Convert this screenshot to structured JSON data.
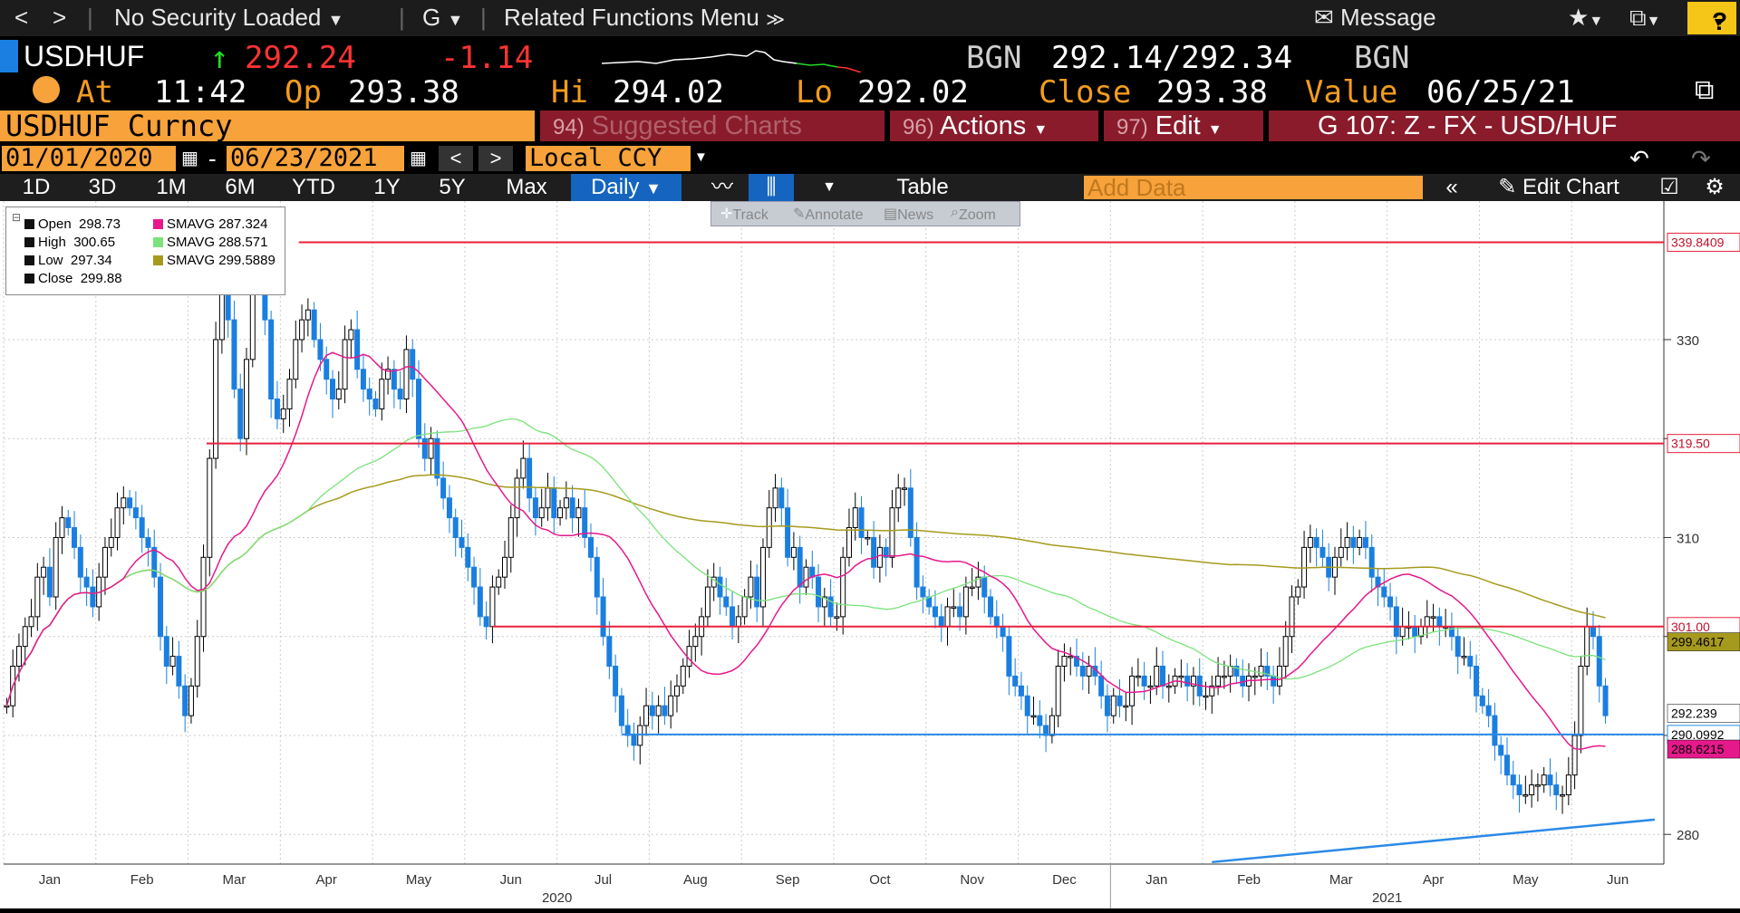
{
  "menubar": {
    "back": "<",
    "forward": ">",
    "security": "No Security Loaded",
    "g_menu": "G",
    "related": "Related Functions Menu",
    "message": "Message",
    "help": "?"
  },
  "quote": {
    "ticker": "USDHUF",
    "last": "292.24",
    "change": "-1.14",
    "bid_src": "BGN",
    "bid_ask": "292.14/292.34",
    "ask_src": "BGN",
    "at_label": "At",
    "time": "11:42",
    "op_label": "Op",
    "open": "293.38",
    "hi_label": "Hi",
    "high": "294.02",
    "lo_label": "Lo",
    "low": "292.02",
    "close_label": "Close",
    "close": "293.38",
    "value_label": "Value",
    "value_date": "06/25/21"
  },
  "toolbar": {
    "security_field": "USDHUF Curncy",
    "suggested_num": "94)",
    "suggested": "Suggested Charts",
    "actions_num": "96)",
    "actions": "Actions",
    "edit_num": "97)",
    "edit": "Edit",
    "template": "G 107: Z - FX - USD/HUF",
    "start_date": "01/01/2020",
    "dash": "-",
    "end_date": "06/23/2021",
    "currency": "Local CCY",
    "periods": [
      "1D",
      "3D",
      "1M",
      "6M",
      "YTD",
      "1Y",
      "5Y",
      "Max"
    ],
    "frequency": "Daily",
    "table": "Table",
    "add_data_placeholder": "Add Data",
    "edit_chart": "Edit Chart",
    "tools": [
      "Track",
      "Annotate",
      "News",
      "Zoom"
    ]
  },
  "colors": {
    "candle": "#1a7fe0",
    "sma_fast": "#e6198c",
    "sma_mid": "#7be37b",
    "sma_slow": "#a69a1e",
    "resistance": "#e8213a",
    "support": "#2a8ae6"
  },
  "chart_data": {
    "type": "candlestick",
    "legend": {
      "open": {
        "label": "Open",
        "value": "298.73"
      },
      "high": {
        "label": "High",
        "value": "300.65"
      },
      "low": {
        "label": "Low",
        "value": "297.34"
      },
      "close": {
        "label": "Close",
        "value": "299.88"
      },
      "sma1": {
        "label": "SMAVG",
        "value": "287.324"
      },
      "sma2": {
        "label": "SMAVG",
        "value": "288.571"
      },
      "sma3": {
        "label": "SMAVG",
        "value": "299.5889"
      }
    },
    "ylim": [
      277,
      344
    ],
    "yticks": [
      280,
      290,
      300,
      310,
      320,
      330
    ],
    "ytick_labels": [
      "280",
      "",
      "",
      "310",
      "",
      "330"
    ],
    "months": [
      "Jan",
      "Feb",
      "Mar",
      "Apr",
      "May",
      "Jun",
      "Jul",
      "Aug",
      "Sep",
      "Oct",
      "Nov",
      "Dec",
      "Jan",
      "Feb",
      "Mar",
      "Apr",
      "May",
      "Jun"
    ],
    "years": [
      {
        "label": "2020",
        "month_index": 5.5
      },
      {
        "label": "2021",
        "month_index": 14.5
      }
    ],
    "close_by_month": [
      [
        293,
        297,
        299,
        301,
        302,
        306,
        307,
        304,
        310,
        312,
        311,
        309,
        306,
        305,
        303
      ],
      [
        306,
        309,
        310,
        313,
        314,
        313,
        312,
        310,
        309,
        306,
        300,
        297,
        298,
        295,
        292
      ],
      [
        295,
        300,
        308,
        318,
        330,
        335,
        332,
        325,
        320,
        328,
        336,
        338,
        332,
        324,
        322
      ],
      [
        323,
        326,
        330,
        332,
        333,
        330,
        328,
        326,
        324,
        325,
        330,
        331,
        327,
        325,
        324
      ],
      [
        323,
        326,
        327,
        325,
        324,
        329,
        326,
        320,
        318,
        320,
        316,
        314,
        312,
        310,
        309
      ],
      [
        307,
        305,
        302,
        301,
        305,
        306,
        308,
        312,
        316,
        318,
        314,
        312,
        313,
        315,
        312
      ],
      [
        313,
        314,
        312,
        313,
        310,
        308,
        304,
        300,
        297,
        294,
        291,
        290,
        289,
        291,
        293
      ],
      [
        292,
        293,
        292,
        294,
        295,
        297,
        299,
        300,
        302,
        305,
        306,
        304,
        303,
        301,
        302
      ],
      [
        304,
        306,
        303,
        309,
        313,
        315,
        313,
        308,
        309,
        305,
        307,
        306,
        303,
        304,
        302
      ],
      [
        302,
        308,
        311,
        313,
        310,
        310,
        307,
        309,
        308,
        313,
        315,
        315,
        310,
        305,
        304
      ],
      [
        303,
        302,
        301,
        303,
        303,
        302,
        305,
        305,
        306,
        304,
        302,
        301,
        300,
        296,
        295
      ],
      [
        294,
        292,
        292,
        291,
        290,
        292,
        297,
        298,
        298,
        297,
        296,
        297,
        296,
        294,
        292
      ],
      [
        294,
        293,
        293,
        296,
        296,
        295,
        295,
        297,
        295,
        295,
        296,
        296,
        295,
        296,
        294
      ],
      [
        294,
        295,
        296,
        296,
        297,
        296,
        295,
        296,
        296,
        297,
        296,
        295,
        297,
        300,
        304
      ],
      [
        305,
        309,
        310,
        309,
        308,
        306,
        308,
        309,
        310,
        309,
        310,
        309,
        306,
        305,
        304
      ],
      [
        303,
        300,
        301,
        301,
        300,
        301,
        302,
        302,
        301,
        301,
        300,
        298,
        298,
        297,
        294
      ],
      [
        293,
        292,
        289,
        288,
        286,
        285,
        284,
        284,
        285,
        285,
        286,
        285,
        284,
        284,
        286
      ],
      [
        290,
        297,
        301,
        300,
        295,
        292
      ]
    ],
    "hlines": [
      {
        "value": 339.8409,
        "label": "339.8409",
        "color": "#e8213a",
        "start_month": 3.2
      },
      {
        "value": 319.5,
        "label": "319.50",
        "color": "#e8213a",
        "start_month": 2.2
      },
      {
        "value": 301.0,
        "label": "301.00",
        "color": "#e8213a",
        "start_month": 5.3
      },
      {
        "value": 290.0992,
        "label": "290.0992",
        "color": "#2a8ae6",
        "start_month": 6.7
      }
    ],
    "trendline": {
      "from": [
        13.1,
        277.2
      ],
      "to": [
        17.9,
        281.5
      ],
      "color": "#2a8ae6"
    },
    "price_tags": [
      {
        "value": 299.4617,
        "label": "299.4617",
        "color": "#a69a1e"
      },
      {
        "value": 292.239,
        "label": "292.239",
        "color": "#ffffff"
      },
      {
        "value": 288.6215,
        "label": "288.6215",
        "color": "#e6198c"
      }
    ]
  }
}
